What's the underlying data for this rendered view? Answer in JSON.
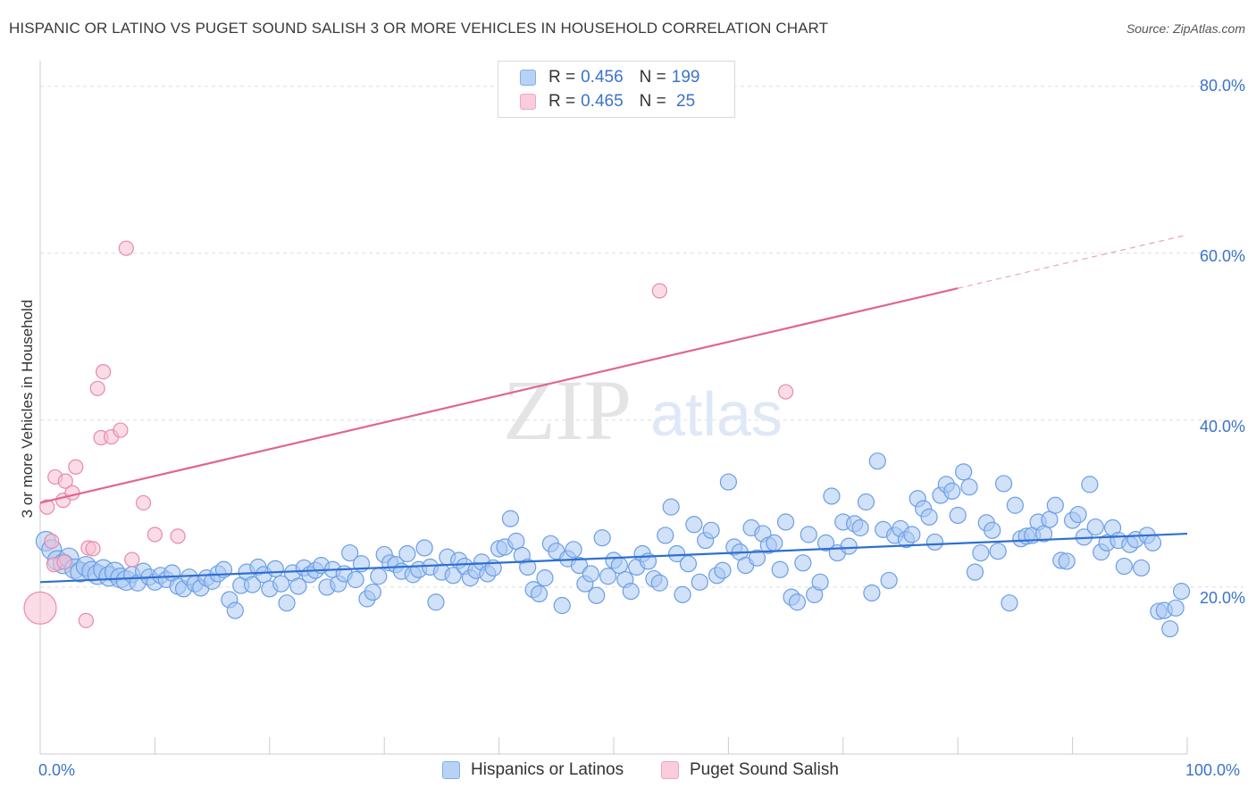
{
  "header": {
    "title": "HISPANIC OR LATINO VS PUGET SOUND SALISH 3 OR MORE VEHICLES IN HOUSEHOLD CORRELATION CHART",
    "source": "Source: ZipAtlas.com"
  },
  "watermark": {
    "zip": "ZIP",
    "atlas": "atlas"
  },
  "legend_top": {
    "rows": [
      {
        "r_label": "R = ",
        "r_value": "0.456",
        "n_label": "N = ",
        "n_value": "199",
        "color": "#7eaef0"
      },
      {
        "r_label": "R = ",
        "r_value": "0.465",
        "n_label": "N = ",
        "n_value": " 25",
        "color": "#f1a3bf"
      }
    ]
  },
  "colors": {
    "blue_fill": "#a9c8f3",
    "blue_stroke": "#6b9ee6",
    "blue_line": "#2f6fd0",
    "pink_fill": "#f6bfd1",
    "pink_stroke": "#e989a9",
    "pink_line": "#e0668f",
    "axis_text": "#3b73c9",
    "grid": "#dedede"
  },
  "chart_data": {
    "type": "scatter",
    "title": "HISPANIC OR LATINO VS PUGET SOUND SALISH 3 OR MORE VEHICLES IN HOUSEHOLD CORRELATION CHART",
    "xlabel": "",
    "ylabel": "3 or more Vehicles in Household",
    "xlim": [
      0,
      100
    ],
    "ylim": [
      0,
      82
    ],
    "x_tick_labels": [
      "0.0%",
      "100.0%"
    ],
    "y_ticks": [
      20,
      40,
      60,
      80
    ],
    "y_tick_labels": [
      "20.0%",
      "40.0%",
      "60.0%",
      "80.0%"
    ],
    "grid": true,
    "legend_position": "bottom",
    "series": [
      {
        "name": "Hispanics or Latinos",
        "regression": {
          "x0": 0,
          "y0": 20.6,
          "x1": 100,
          "y1": 26.4
        },
        "points": [
          [
            0.5,
            25.5
          ],
          [
            1,
            24.5
          ],
          [
            1.5,
            23.2
          ],
          [
            2,
            22.8
          ],
          [
            2.5,
            23.5
          ],
          [
            3,
            22.2
          ],
          [
            3.5,
            21.8
          ],
          [
            4,
            22.5
          ],
          [
            4.5,
            21.9
          ],
          [
            5,
            21.5
          ],
          [
            5.5,
            22.1
          ],
          [
            6,
            21.3
          ],
          [
            6.5,
            21.8
          ],
          [
            7,
            21.1
          ],
          [
            7.5,
            20.8
          ],
          [
            8,
            21.5
          ],
          [
            8.5,
            20.5
          ],
          [
            9,
            21.9
          ],
          [
            9.5,
            21.2
          ],
          [
            10,
            20.6
          ],
          [
            10.5,
            21.4
          ],
          [
            11,
            20.9
          ],
          [
            11.5,
            21.7
          ],
          [
            12,
            20.1
          ],
          [
            12.5,
            19.8
          ],
          [
            13,
            21.2
          ],
          [
            13.5,
            20.4
          ],
          [
            14,
            19.9
          ],
          [
            14.5,
            21.1
          ],
          [
            15,
            20.7
          ],
          [
            15.5,
            21.6
          ],
          [
            16,
            22.1
          ],
          [
            16.5,
            18.5
          ],
          [
            17,
            17.2
          ],
          [
            17.5,
            20.2
          ],
          [
            18,
            21.8
          ],
          [
            18.5,
            20.3
          ],
          [
            19,
            22.4
          ],
          [
            19.5,
            21.5
          ],
          [
            20,
            19.8
          ],
          [
            20.5,
            22.2
          ],
          [
            21,
            20.4
          ],
          [
            21.5,
            18.1
          ],
          [
            22,
            21.7
          ],
          [
            22.5,
            20.1
          ],
          [
            23,
            22.3
          ],
          [
            23.5,
            21.5
          ],
          [
            24,
            22.0
          ],
          [
            24.5,
            22.6
          ],
          [
            25,
            20.0
          ],
          [
            25.5,
            22.1
          ],
          [
            26,
            20.4
          ],
          [
            26.5,
            21.6
          ],
          [
            27,
            24.1
          ],
          [
            27.5,
            20.9
          ],
          [
            28,
            22.8
          ],
          [
            28.5,
            18.6
          ],
          [
            29,
            19.4
          ],
          [
            29.5,
            21.3
          ],
          [
            30,
            23.9
          ],
          [
            30.5,
            22.9
          ],
          [
            31,
            22.7
          ],
          [
            31.5,
            21.9
          ],
          [
            32,
            24.0
          ],
          [
            32.5,
            21.5
          ],
          [
            33,
            22.1
          ],
          [
            33.5,
            24.7
          ],
          [
            34,
            22.4
          ],
          [
            34.5,
            18.2
          ],
          [
            35,
            21.8
          ],
          [
            35.5,
            23.6
          ],
          [
            36,
            21.4
          ],
          [
            36.5,
            23.2
          ],
          [
            37,
            22.5
          ],
          [
            37.5,
            21.1
          ],
          [
            38,
            22.0
          ],
          [
            38.5,
            23.0
          ],
          [
            39,
            21.6
          ],
          [
            39.5,
            22.3
          ],
          [
            40,
            24.6
          ],
          [
            40.5,
            24.8
          ],
          [
            41,
            28.2
          ],
          [
            41.5,
            25.5
          ],
          [
            42,
            23.8
          ],
          [
            42.5,
            22.4
          ],
          [
            43,
            19.7
          ],
          [
            43.5,
            19.2
          ],
          [
            44,
            21.1
          ],
          [
            44.5,
            25.2
          ],
          [
            45,
            24.3
          ],
          [
            45.5,
            17.8
          ],
          [
            46,
            23.4
          ],
          [
            46.5,
            24.5
          ],
          [
            47,
            22.6
          ],
          [
            47.5,
            20.4
          ],
          [
            48,
            21.6
          ],
          [
            48.5,
            19.0
          ],
          [
            49,
            25.9
          ],
          [
            49.5,
            21.3
          ],
          [
            50,
            23.2
          ],
          [
            50.5,
            22.6
          ],
          [
            51,
            20.9
          ],
          [
            51.5,
            19.5
          ],
          [
            52,
            22.4
          ],
          [
            52.5,
            24.0
          ],
          [
            53,
            23.1
          ],
          [
            53.5,
            21.0
          ],
          [
            54,
            20.5
          ],
          [
            54.5,
            26.2
          ],
          [
            55,
            29.6
          ],
          [
            55.5,
            24.0
          ],
          [
            56,
            19.1
          ],
          [
            56.5,
            22.8
          ],
          [
            57,
            27.5
          ],
          [
            57.5,
            20.6
          ],
          [
            58,
            25.6
          ],
          [
            58.5,
            26.8
          ],
          [
            59,
            21.4
          ],
          [
            59.5,
            22.0
          ],
          [
            60,
            32.6
          ],
          [
            60.5,
            24.8
          ],
          [
            61,
            24.2
          ],
          [
            61.5,
            22.6
          ],
          [
            62,
            27.1
          ],
          [
            62.5,
            23.5
          ],
          [
            63,
            26.4
          ],
          [
            63.5,
            25.0
          ],
          [
            64,
            25.3
          ],
          [
            64.5,
            22.1
          ],
          [
            65,
            27.8
          ],
          [
            65.5,
            18.8
          ],
          [
            66,
            18.2
          ],
          [
            66.5,
            22.9
          ],
          [
            67,
            26.3
          ],
          [
            67.5,
            19.1
          ],
          [
            68,
            20.6
          ],
          [
            68.5,
            25.3
          ],
          [
            69,
            30.9
          ],
          [
            69.5,
            24.1
          ],
          [
            70,
            27.8
          ],
          [
            70.5,
            24.9
          ],
          [
            71,
            27.6
          ],
          [
            71.5,
            27.1
          ],
          [
            72,
            30.2
          ],
          [
            72.5,
            19.3
          ],
          [
            73,
            35.1
          ],
          [
            73.5,
            26.9
          ],
          [
            74,
            20.8
          ],
          [
            74.5,
            26.2
          ],
          [
            75,
            27.0
          ],
          [
            75.5,
            25.7
          ],
          [
            76,
            26.3
          ],
          [
            76.5,
            30.6
          ],
          [
            77,
            29.4
          ],
          [
            77.5,
            28.4
          ],
          [
            78,
            25.4
          ],
          [
            78.5,
            31.0
          ],
          [
            79,
            32.3
          ],
          [
            79.5,
            31.5
          ],
          [
            80,
            28.6
          ],
          [
            80.5,
            33.8
          ],
          [
            81,
            32.0
          ],
          [
            81.5,
            21.8
          ],
          [
            82,
            24.1
          ],
          [
            82.5,
            27.7
          ],
          [
            83,
            26.8
          ],
          [
            83.5,
            24.3
          ],
          [
            84,
            32.4
          ],
          [
            84.5,
            18.1
          ],
          [
            85,
            29.8
          ],
          [
            85.5,
            25.8
          ],
          [
            86,
            26.1
          ],
          [
            86.5,
            26.2
          ],
          [
            87,
            27.8
          ],
          [
            87.5,
            26.4
          ],
          [
            88,
            28.1
          ],
          [
            88.5,
            29.8
          ],
          [
            89,
            23.2
          ],
          [
            89.5,
            23.1
          ],
          [
            90,
            28.0
          ],
          [
            90.5,
            28.7
          ],
          [
            91,
            26.0
          ],
          [
            91.5,
            32.3
          ],
          [
            92,
            27.2
          ],
          [
            92.5,
            24.2
          ],
          [
            93,
            25.3
          ],
          [
            93.5,
            27.1
          ],
          [
            94,
            25.6
          ],
          [
            94.5,
            22.5
          ],
          [
            95,
            25.1
          ],
          [
            95.5,
            25.7
          ],
          [
            96,
            22.3
          ],
          [
            96.5,
            26.2
          ],
          [
            97,
            25.3
          ],
          [
            97.5,
            17.1
          ],
          [
            98,
            17.2
          ],
          [
            98.5,
            15.0
          ],
          [
            99,
            17.5
          ],
          [
            99.5,
            19.5
          ]
        ]
      },
      {
        "name": "Puget Sound Salish",
        "regression": {
          "x0": 0,
          "y0": 30.1,
          "x1": 80,
          "y1": 55.8,
          "dashed_to": {
            "x": 100,
            "y": 62.2
          }
        },
        "points": [
          [
            0,
            17.5
          ],
          [
            0.6,
            29.6
          ],
          [
            1,
            25.5
          ],
          [
            1.2,
            22.7
          ],
          [
            1.3,
            33.2
          ],
          [
            2,
            30.4
          ],
          [
            2.1,
            23.0
          ],
          [
            2.2,
            32.7
          ],
          [
            2.8,
            31.3
          ],
          [
            3.1,
            34.4
          ],
          [
            4,
            16.0
          ],
          [
            4.2,
            24.7
          ],
          [
            4.6,
            24.6
          ],
          [
            5,
            43.8
          ],
          [
            5.3,
            37.9
          ],
          [
            5.5,
            45.8
          ],
          [
            6.2,
            38.0
          ],
          [
            7,
            38.8
          ],
          [
            7.5,
            60.6
          ],
          [
            8,
            23.3
          ],
          [
            9,
            30.1
          ],
          [
            10,
            26.3
          ],
          [
            12,
            26.1
          ],
          [
            54,
            55.5
          ],
          [
            65,
            43.4
          ]
        ]
      }
    ]
  }
}
